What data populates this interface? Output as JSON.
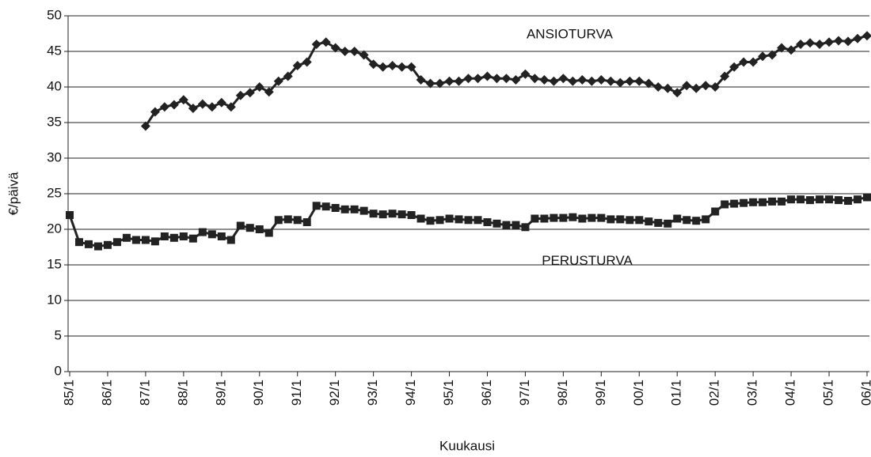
{
  "chart_data": {
    "type": "line",
    "ylabel": "€/päivä",
    "xlabel": "Kuukausi",
    "categories": [
      "85/1",
      null,
      null,
      null,
      "86/1",
      null,
      null,
      null,
      "87/1",
      null,
      null,
      null,
      "88/1",
      null,
      null,
      null,
      "89/1",
      null,
      null,
      null,
      "90/1",
      null,
      null,
      null,
      "91/1",
      null,
      null,
      null,
      "92/1",
      null,
      null,
      null,
      "93/1",
      null,
      null,
      null,
      "94/1",
      null,
      null,
      null,
      "95/1",
      null,
      null,
      null,
      "96/1",
      null,
      null,
      null,
      "97/1",
      null,
      null,
      null,
      "98/1",
      null,
      null,
      null,
      "99/1",
      null,
      null,
      null,
      "00/1",
      null,
      null,
      null,
      "01/1",
      null,
      null,
      null,
      "02/1",
      null,
      null,
      null,
      "03/1",
      null,
      null,
      null,
      "04/1",
      null,
      null,
      null,
      "05/1",
      null,
      null,
      null,
      "06/1"
    ],
    "series": [
      {
        "name": "ANSIOTURVA",
        "color": "#222222",
        "marker": "diamond",
        "values": [
          null,
          null,
          null,
          null,
          null,
          null,
          null,
          null,
          34.5,
          36.5,
          37.2,
          37.5,
          38.2,
          37.0,
          37.6,
          37.2,
          37.8,
          37.2,
          38.8,
          39.2,
          40.0,
          39.3,
          40.8,
          41.5,
          43.0,
          43.5,
          46.0,
          46.3,
          45.5,
          45.0,
          45.0,
          44.5,
          43.2,
          42.8,
          43.0,
          42.8,
          42.8,
          41.0,
          40.5,
          40.5,
          40.8,
          40.8,
          41.2,
          41.2,
          41.5,
          41.2,
          41.2,
          41.0,
          41.8,
          41.2,
          41.0,
          40.8,
          41.2,
          40.8,
          41.0,
          40.8,
          41.0,
          40.8,
          40.6,
          40.8,
          40.8,
          40.5,
          40.0,
          39.8,
          39.2,
          40.2,
          39.8,
          40.2,
          40.0,
          41.5,
          42.8,
          43.5,
          43.5,
          44.3,
          44.5,
          45.5,
          45.2,
          46.0,
          46.2,
          46.0,
          46.3,
          46.5,
          46.4,
          46.8,
          47.2
        ]
      },
      {
        "name": "PERUSTURVA",
        "color": "#222222",
        "marker": "square",
        "values": [
          22,
          18.2,
          17.9,
          17.6,
          17.8,
          18.2,
          18.8,
          18.5,
          18.5,
          18.3,
          19.0,
          18.8,
          19.0,
          18.7,
          19.6,
          19.3,
          19.0,
          18.5,
          20.5,
          20.2,
          20.0,
          19.5,
          21.3,
          21.4,
          21.3,
          21.0,
          23.3,
          23.2,
          23.0,
          22.8,
          22.8,
          22.6,
          22.2,
          22.1,
          22.2,
          22.1,
          22.0,
          21.5,
          21.2,
          21.3,
          21.5,
          21.4,
          21.3,
          21.3,
          21.0,
          20.8,
          20.6,
          20.6,
          20.3,
          21.5,
          21.5,
          21.6,
          21.6,
          21.7,
          21.5,
          21.6,
          21.6,
          21.4,
          21.4,
          21.3,
          21.3,
          21.1,
          20.9,
          20.8,
          21.5,
          21.3,
          21.2,
          21.4,
          22.5,
          23.5,
          23.6,
          23.7,
          23.8,
          23.8,
          23.9,
          23.9,
          24.2,
          24.2,
          24.1,
          24.2,
          24.2,
          24.1,
          24.0,
          24.2,
          24.5
        ]
      }
    ],
    "ylim": [
      0,
      50
    ],
    "yticks": [
      0,
      5,
      10,
      15,
      20,
      25,
      30,
      35,
      40,
      45,
      50
    ],
    "grid": true
  }
}
